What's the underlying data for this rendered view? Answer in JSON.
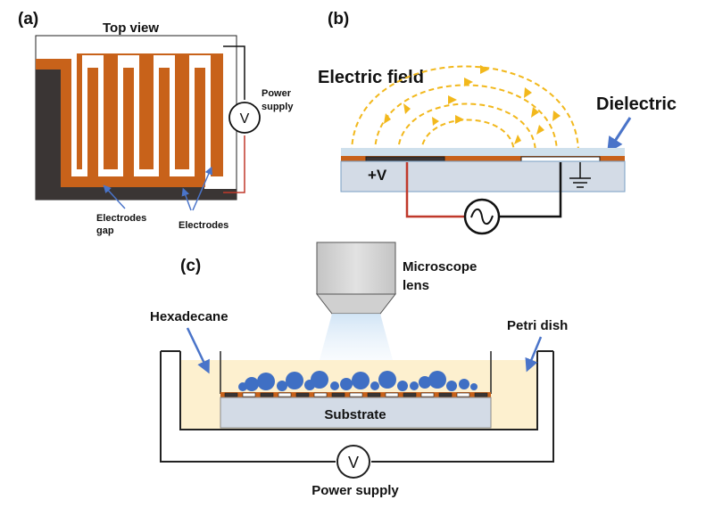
{
  "panel_a": {
    "tag": "(a)",
    "title": "Top view",
    "power_label_1": "Power",
    "power_label_2": "supply",
    "meter_symbol": "V",
    "gap_label_1": "Electrodes",
    "gap_label_2": "gap",
    "electrodes_label": "Electrodes"
  },
  "panel_b": {
    "tag": "(b)",
    "field_label": "Electric field",
    "dielectric_label": "Dielectric",
    "voltage_label": "+V"
  },
  "panel_c": {
    "tag": "(c)",
    "lens_label_1": "Microscope",
    "lens_label_2": "lens",
    "hexadecane_label": "Hexadecane",
    "petri_label": "Petri dish",
    "substrate_label": "Substrate",
    "meter_symbol": "V",
    "power_label": "Power supply"
  },
  "colors": {
    "electrode": "#c8621a",
    "dark": "#3a3534",
    "field": "#f2b81c",
    "wire_red": "#c0392b",
    "droplet": "#3f6fc4",
    "substrate": "#d3dbe6",
    "oil": "#fdf0cf",
    "dielectric": "#cfe0ec"
  }
}
